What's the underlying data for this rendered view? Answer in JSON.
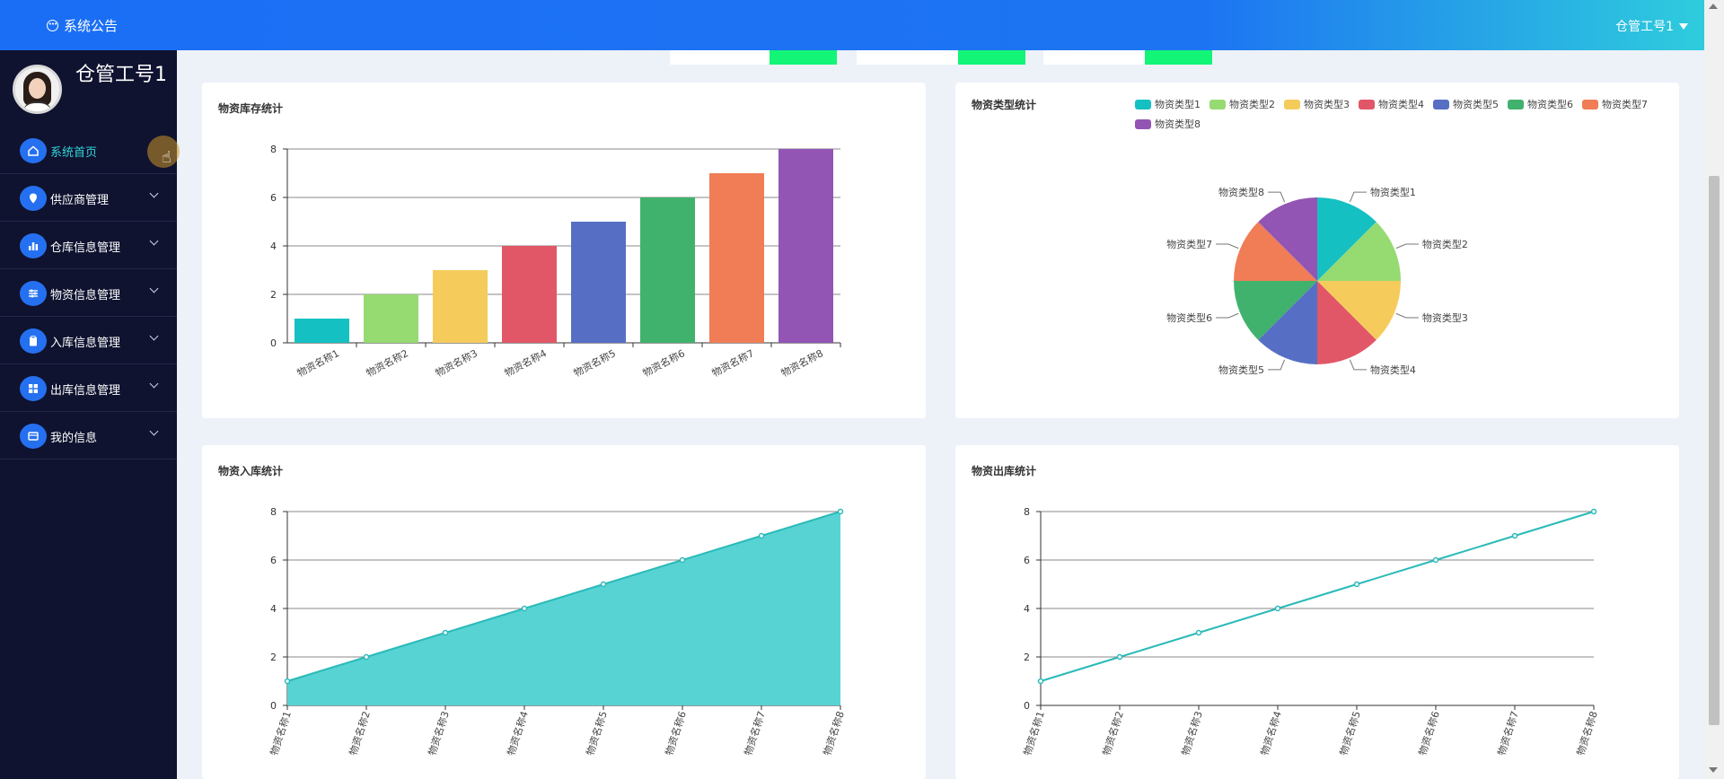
{
  "header": {
    "notice_label": "系统公告",
    "user_label": "仓管工号1",
    "notice_icon": "chat-bubble-icon"
  },
  "profile": {
    "name": "仓管工号1"
  },
  "sidebar": {
    "items": [
      {
        "label": "系统首页",
        "icon": "home-icon",
        "active": true
      },
      {
        "label": "供应商管理",
        "icon": "location-pin-icon"
      },
      {
        "label": "仓库信息管理",
        "icon": "bar-chart-icon"
      },
      {
        "label": "物资信息管理",
        "icon": "sliders-icon"
      },
      {
        "label": "入库信息管理",
        "icon": "clipboard-icon"
      },
      {
        "label": "出库信息管理",
        "icon": "grid-icon"
      },
      {
        "label": "我的信息",
        "icon": "id-card-icon"
      }
    ]
  },
  "colors": {
    "accent": "#1d74f2",
    "palette": [
      "#15c0c2",
      "#96da72",
      "#f5cc5c",
      "#e15767",
      "#566fc4",
      "#41b26d",
      "#f07d55",
      "#9255b4"
    ],
    "area_fill": "#57d3d3",
    "line": "#2abab8"
  },
  "cards": {
    "stock": {
      "title": "物资库存统计"
    },
    "types": {
      "title": "物资类型统计"
    },
    "inbound": {
      "title": "物资入库统计"
    },
    "outbound": {
      "title": "物资出库统计"
    }
  },
  "chart_data": [
    {
      "type": "bar",
      "title": "物资库存统计",
      "categories": [
        "物资名称1",
        "物资名称2",
        "物资名称3",
        "物资名称4",
        "物资名称5",
        "物资名称6",
        "物资名称7",
        "物资名称8"
      ],
      "values": [
        1,
        2,
        3,
        4,
        5,
        6,
        7,
        8
      ],
      "yticks": [
        0,
        2,
        4,
        6,
        8
      ],
      "ylim": [
        0,
        8
      ],
      "grid": true,
      "colors": "per-category palette"
    },
    {
      "type": "pie",
      "title": "物资类型统计",
      "labels": [
        "物资类型1",
        "物资类型2",
        "物资类型3",
        "物资类型4",
        "物资类型5",
        "物资类型6",
        "物资类型7",
        "物资类型8"
      ],
      "values": [
        1,
        1,
        1,
        1,
        1,
        1,
        1,
        1
      ],
      "legend": "top"
    },
    {
      "type": "area",
      "title": "物资入库统计",
      "categories": [
        "物资名称1",
        "物资名称2",
        "物资名称3",
        "物资名称4",
        "物资名称5",
        "物资名称6",
        "物资名称7",
        "物资名称8"
      ],
      "values": [
        1,
        2,
        3,
        4,
        5,
        6,
        7,
        8
      ],
      "yticks": [
        0,
        2,
        4,
        6,
        8
      ],
      "ylim": [
        0,
        8
      ],
      "grid": true
    },
    {
      "type": "line",
      "title": "物资出库统计",
      "categories": [
        "物资名称1",
        "物资名称2",
        "物资名称3",
        "物资名称4",
        "物资名称5",
        "物资名称6",
        "物资名称7",
        "物资名称8"
      ],
      "values": [
        1,
        2,
        3,
        4,
        5,
        6,
        7,
        8
      ],
      "yticks": [
        0,
        2,
        4,
        6,
        8
      ],
      "ylim": [
        0,
        8
      ],
      "grid": true
    }
  ]
}
